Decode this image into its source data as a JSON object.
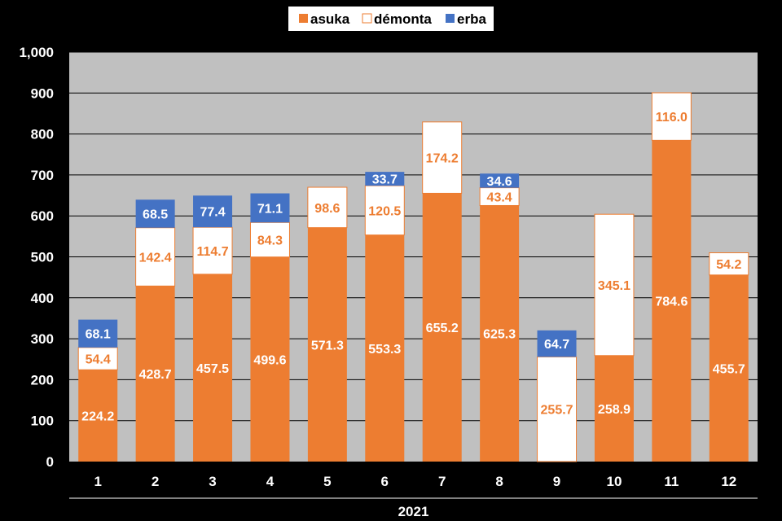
{
  "chart_data": {
    "type": "bar",
    "stacked": true,
    "categories": [
      "1",
      "2",
      "3",
      "4",
      "5",
      "6",
      "7",
      "8",
      "9",
      "10",
      "11",
      "12"
    ],
    "group_label": "2021",
    "series": [
      {
        "name": "asuka",
        "color": "#ED7D31",
        "values": [
          224.2,
          428.7,
          457.5,
          499.6,
          571.3,
          553.3,
          655.2,
          625.3,
          null,
          258.9,
          784.6,
          455.7
        ]
      },
      {
        "name": "démonta",
        "color": "#FFFFFF",
        "values": [
          54.4,
          142.4,
          114.7,
          84.3,
          98.6,
          120.5,
          174.2,
          43.4,
          255.7,
          345.1,
          116.0,
          54.2
        ]
      },
      {
        "name": "erba",
        "color": "#4472C4",
        "values": [
          68.1,
          68.5,
          77.4,
          71.1,
          null,
          33.7,
          null,
          34.6,
          64.7,
          null,
          null,
          null
        ]
      }
    ],
    "ylim": [
      0,
      1000
    ],
    "yticks": [
      "0",
      "100",
      "200",
      "300",
      "400",
      "500",
      "600",
      "700",
      "800",
      "900",
      "1,000"
    ],
    "grid": true,
    "legend_position": "top",
    "plot_background": "#C0C0C0",
    "page_background": "#000000",
    "label_color_on_dark": "#FFFFFF",
    "label_color_on_white": "#ED7D31"
  }
}
